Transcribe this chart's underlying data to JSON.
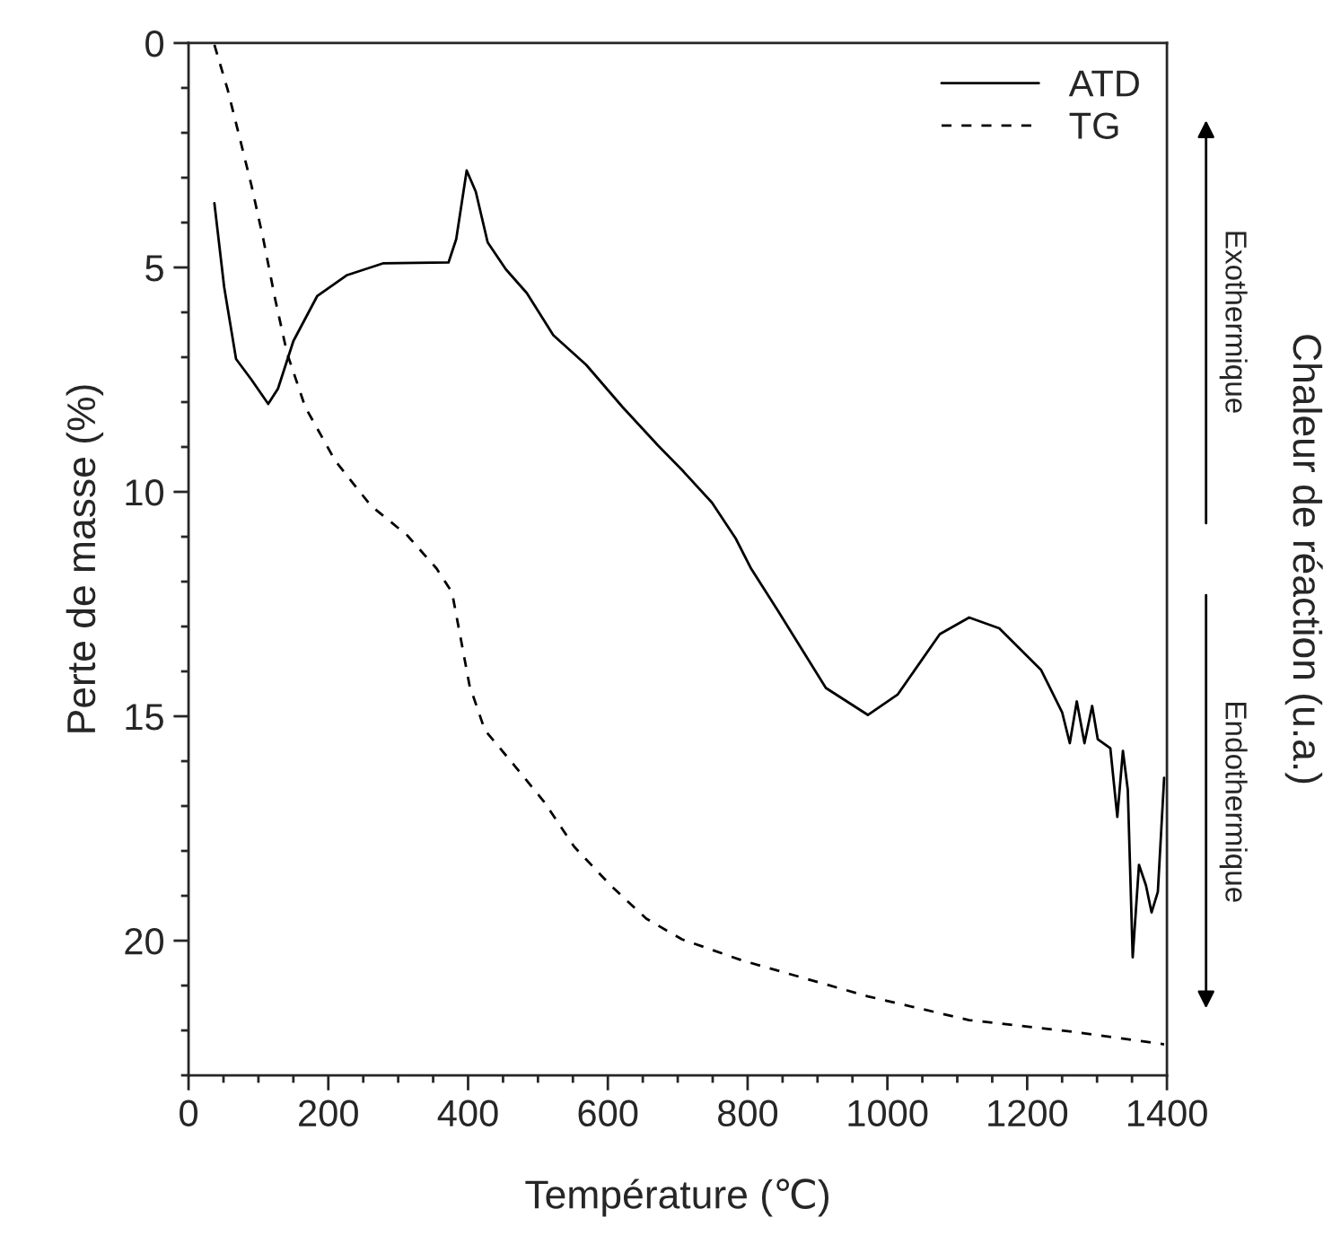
{
  "chart_data": {
    "type": "line",
    "xlabel": "Température (℃)",
    "ylabel": "Perte de masse (%)",
    "y2label": "Chaleur de réaction (u.a.)",
    "xlim": [
      0,
      1400
    ],
    "xticks": [
      0,
      200,
      400,
      600,
      800,
      1000,
      1200,
      1400
    ],
    "ylim": [
      23,
      0
    ],
    "yticks": [
      0,
      5,
      10,
      15,
      20
    ],
    "legend": "top right",
    "grid": false,
    "annotations": [
      "Exothermique",
      "Endothermique"
    ],
    "series": [
      {
        "name": "ATD",
        "color": "#000000",
        "line_style": "solid",
        "x": [
          37,
          51,
          68,
          90,
          114,
          128,
          150,
          184,
          227,
          278,
          372,
          383,
          398,
          411,
          428,
          454,
          484,
          522,
          569,
          621,
          672,
          706,
          749,
          783,
          805,
          843,
          912,
          972,
          1015,
          1075,
          1117,
          1160,
          1220,
          1250,
          1261,
          1271,
          1282,
          1293,
          1301,
          1319,
          1329,
          1337,
          1344,
          1351,
          1360,
          1370,
          1378,
          1387,
          1396
        ],
        "values": [
          3.57,
          5.44,
          7.04,
          7.5,
          8.04,
          7.7,
          6.64,
          5.64,
          5.17,
          4.91,
          4.89,
          4.37,
          2.84,
          3.31,
          4.44,
          5.04,
          5.57,
          6.51,
          7.17,
          8.11,
          8.97,
          9.51,
          10.24,
          11.04,
          11.71,
          12.64,
          14.37,
          14.97,
          14.51,
          13.17,
          12.8,
          13.04,
          13.97,
          14.91,
          15.6,
          14.67,
          15.6,
          14.77,
          15.51,
          15.71,
          17.24,
          15.77,
          16.64,
          20.37,
          18.31,
          18.77,
          19.37,
          18.91,
          16.37
        ]
      },
      {
        "name": "TG",
        "color": "#000000",
        "line_style": "dashed",
        "x": [
          37,
          56,
          73,
          90,
          107,
          124,
          141,
          167,
          210,
          261,
          313,
          355,
          377,
          390,
          402,
          424,
          467,
          509,
          552,
          604,
          655,
          706,
          792,
          972,
          1117,
          1271,
          1396
        ],
        "values": [
          0.04,
          1.04,
          2.1,
          3.17,
          4.37,
          5.71,
          6.91,
          8.11,
          9.31,
          10.31,
          10.97,
          11.71,
          12.24,
          13.31,
          14.31,
          15.31,
          16.11,
          16.91,
          17.91,
          18.77,
          19.51,
          19.97,
          20.44,
          21.24,
          21.77,
          22.04,
          22.31
        ]
      }
    ]
  }
}
